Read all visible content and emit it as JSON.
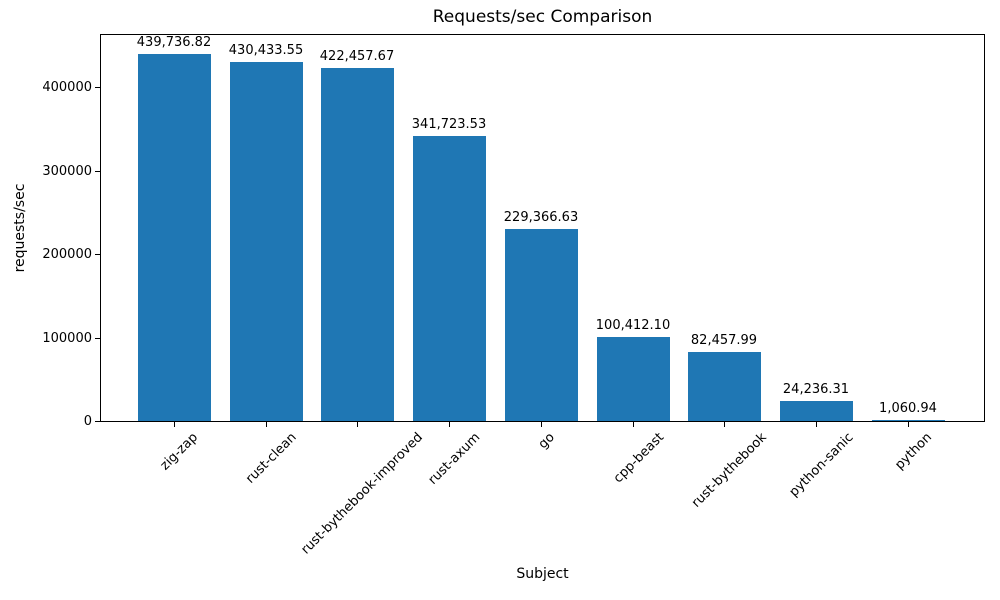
{
  "chart_data": {
    "type": "bar",
    "title": "Requests/sec Comparison",
    "xlabel": "Subject",
    "ylabel": "requests/sec",
    "categories": [
      "zig-zap",
      "rust-clean",
      "rust-bythebook-improved",
      "rust-axum",
      "go",
      "cpp-beast",
      "rust-bythebook",
      "python-sanic",
      "python"
    ],
    "values": [
      439736.82,
      430433.55,
      422457.67,
      341723.53,
      229366.63,
      100412.1,
      82457.99,
      24236.31,
      1060.94
    ],
    "value_labels": [
      "439,736.82",
      "430,433.55",
      "422,457.67",
      "341,723.53",
      "229,366.63",
      "100,412.10",
      "82,457.99",
      "24,236.31",
      "1,060.94"
    ],
    "yticks": [
      0,
      100000,
      200000,
      300000,
      400000
    ],
    "ytick_labels": [
      "0",
      "100000",
      "200000",
      "300000",
      "400000"
    ],
    "ylim": [
      0,
      464000
    ],
    "bar_color": "#1f77b4",
    "text_color": "#000000",
    "grid": false,
    "legend_position": "none",
    "x_tick_rotation_deg": 45
  }
}
